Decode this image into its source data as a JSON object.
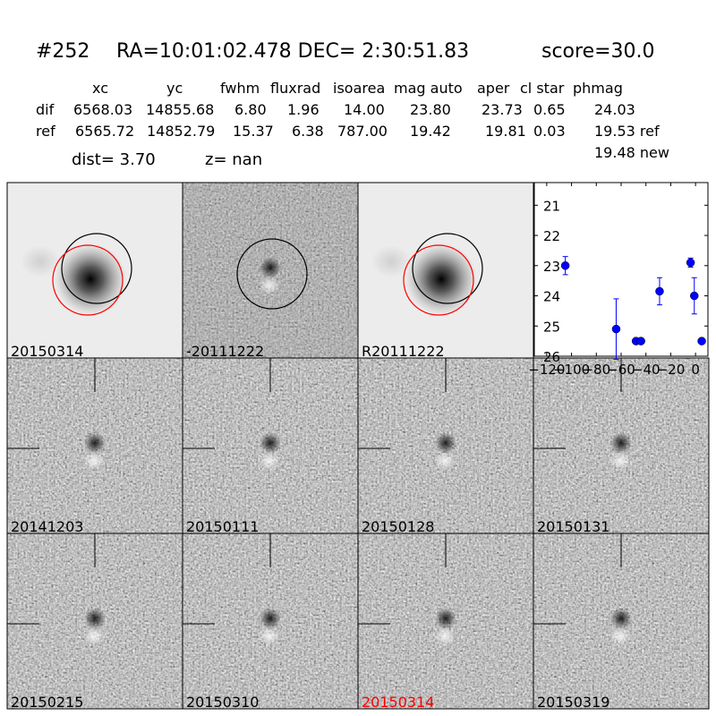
{
  "header": {
    "id": "#252",
    "coords": "RA=10:01:02.478 DEC= 2:30:51.83",
    "score": "score=30.0"
  },
  "table": {
    "columns": [
      "xc",
      "yc",
      "fwhm",
      "fluxrad",
      "isoarea",
      "mag auto",
      "aper",
      "cl star",
      "phmag"
    ],
    "rows": [
      [
        "dif",
        "6568.03",
        "14855.68",
        "6.80",
        "1.96",
        "14.00",
        "23.80",
        "23.73",
        "0.65",
        "24.03"
      ],
      [
        "ref",
        "6565.72",
        "14852.79",
        "15.37",
        "6.38",
        "787.00",
        "19.42",
        "19.81",
        "0.03",
        "19.53 ref"
      ]
    ],
    "note": "19.48 new",
    "dist": "dist=  3.70",
    "z": "z=   nan"
  },
  "panels": [
    {
      "label": "20150314"
    },
    {
      "label": "-20111222"
    },
    {
      "label": "R20111222"
    },
    {
      "label": "20141203"
    },
    {
      "label": "20150111"
    },
    {
      "label": "20150128"
    },
    {
      "label": "20150131"
    },
    {
      "label": "20150215"
    },
    {
      "label": "20150310"
    },
    {
      "label": "20150314",
      "color": "#ff0000"
    },
    {
      "label": "20150319"
    }
  ],
  "chart_data": {
    "type": "scatter",
    "color": "#0000ff",
    "x": [
      -105,
      -64,
      -48,
      -44,
      -29,
      -4,
      -1,
      5
    ],
    "values": [
      23.0,
      25.1,
      25.5,
      25.5,
      23.85,
      22.9,
      24.0,
      25.5
    ],
    "errors": [
      0.3,
      1.0,
      0.05,
      0.05,
      0.45,
      0.15,
      0.6,
      0.05
    ],
    "xlim": [
      -130,
      10
    ],
    "ylim": [
      26,
      20.25
    ],
    "xticks": [
      {
        "value": -120,
        "label": "−120"
      },
      {
        "value": -100,
        "label": "−100"
      },
      {
        "value": -80,
        "label": "−80"
      },
      {
        "value": -60,
        "label": "−60"
      },
      {
        "value": -40,
        "label": "−40"
      },
      {
        "value": -20,
        "label": "−20"
      },
      {
        "value": 0,
        "label": "0"
      }
    ],
    "yticks": [
      21,
      22,
      23,
      24,
      25,
      26
    ]
  }
}
